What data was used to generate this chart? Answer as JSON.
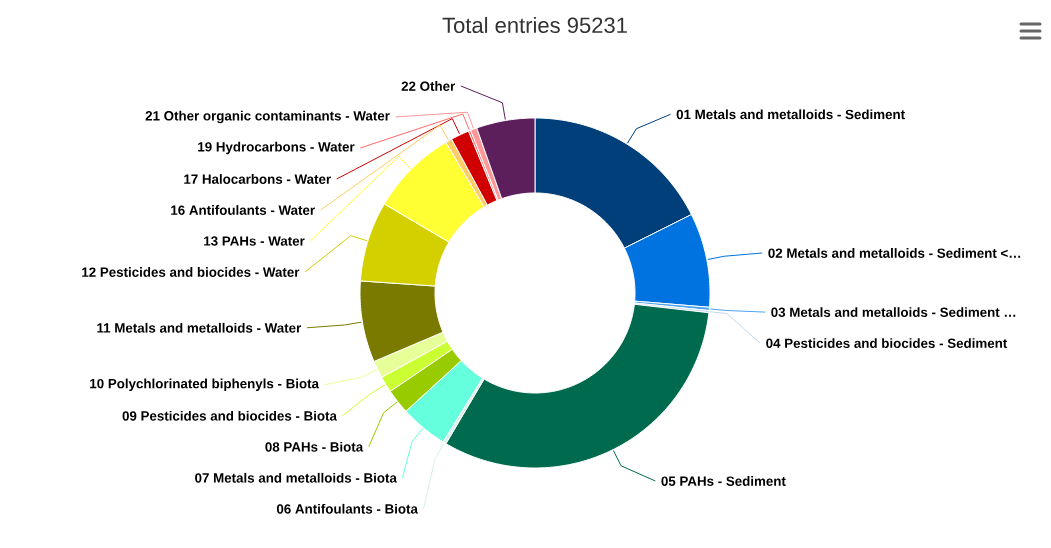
{
  "chart_data": {
    "type": "donut",
    "title": "Total entries 95231",
    "categories": [
      "01 Metals and metalloids - Sediment",
      "02 Metals and metalloids - Sediment <…",
      "03 Metals and metalloids - Sediment …",
      "04 Pesticides and biocides - Sediment",
      "05 PAHs - Sediment",
      "06 Antifoulants - Biota",
      "07 Metals and metalloids - Biota",
      "08 PAHs - Biota",
      "09 Pesticides and biocides - Biota",
      "10 Polychlorinated biphenyls - Biota",
      "11 Metals and metalloids - Water",
      "12 Pesticides and biocides - Water",
      "13 PAHs - Water",
      "16 Antifoulants - Water",
      "17 Halocarbons - Water",
      "19 Hydrocarbons - Water",
      "21 Other organic contaminants - Water",
      "22 Other"
    ],
    "values": [
      17.6,
      8.7,
      0.3,
      0.2,
      31.7,
      0.3,
      4.4,
      2.3,
      1.5,
      1.6,
      7.5,
      7.4,
      8.0,
      0.6,
      1.7,
      0.2,
      0.6,
      5.4
    ],
    "colors": [
      "#003f7a",
      "#0073e0",
      "#4aa3f0",
      "#c0d8f0",
      "#006a4e",
      "#d8f0e8",
      "#66ffdd",
      "#99cc00",
      "#ccff33",
      "#e6ff99",
      "#7a7a00",
      "#d4d000",
      "#ffff33",
      "#ffcc66",
      "#d00000",
      "#ff6666",
      "#ff9999",
      "#5c1f5c"
    ]
  }
}
